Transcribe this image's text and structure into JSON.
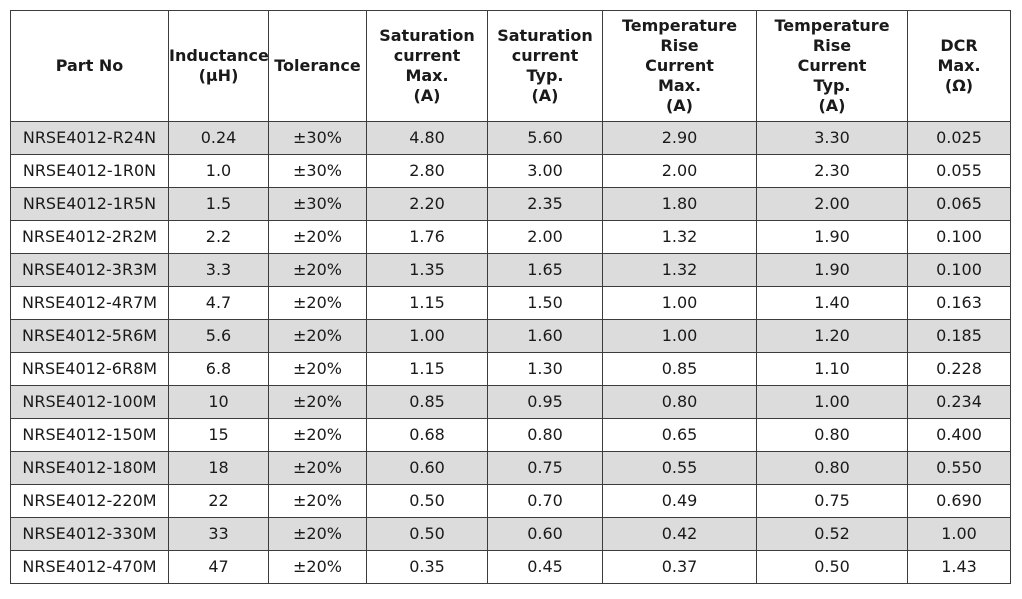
{
  "colors": {
    "shaded_row": "#dcdcdc",
    "border": "#3c3c3c",
    "text": "#1a1a1a"
  },
  "headers": [
    "Part No",
    "Inductance\n(µH)",
    "Tolerance",
    "Saturation\ncurrent\nMax.\n(A)",
    "Saturation\ncurrent\nTyp.\n(A)",
    "Temperature Rise\nCurrent\nMax.\n(A)",
    "Temperature Rise\nCurrent\nTyp.\n(A)",
    "DCR\nMax.\n(Ω)"
  ],
  "rows": [
    [
      "NRSE4012-R24N",
      "0.24",
      "±30%",
      "4.80",
      "5.60",
      "2.90",
      "3.30",
      "0.025"
    ],
    [
      "NRSE4012-1R0N",
      "1.0",
      "±30%",
      "2.80",
      "3.00",
      "2.00",
      "2.30",
      "0.055"
    ],
    [
      "NRSE4012-1R5N",
      "1.5",
      "±30%",
      "2.20",
      "2.35",
      "1.80",
      "2.00",
      "0.065"
    ],
    [
      "NRSE4012-2R2M",
      "2.2",
      "±20%",
      "1.76",
      "2.00",
      "1.32",
      "1.90",
      "0.100"
    ],
    [
      "NRSE4012-3R3M",
      "3.3",
      "±20%",
      "1.35",
      "1.65",
      "1.32",
      "1.90",
      "0.100"
    ],
    [
      "NRSE4012-4R7M",
      "4.7",
      "±20%",
      "1.15",
      "1.50",
      "1.00",
      "1.40",
      "0.163"
    ],
    [
      "NRSE4012-5R6M",
      "5.6",
      "±20%",
      "1.00",
      "1.60",
      "1.00",
      "1.20",
      "0.185"
    ],
    [
      "NRSE4012-6R8M",
      "6.8",
      "±20%",
      "1.15",
      "1.30",
      "0.85",
      "1.10",
      "0.228"
    ],
    [
      "NRSE4012-100M",
      "10",
      "±20%",
      "0.85",
      "0.95",
      "0.80",
      "1.00",
      "0.234"
    ],
    [
      "NRSE4012-150M",
      "15",
      "±20%",
      "0.68",
      "0.80",
      "0.65",
      "0.80",
      "0.400"
    ],
    [
      "NRSE4012-180M",
      "18",
      "±20%",
      "0.60",
      "0.75",
      "0.55",
      "0.80",
      "0.550"
    ],
    [
      "NRSE4012-220M",
      "22",
      "±20%",
      "0.50",
      "0.70",
      "0.49",
      "0.75",
      "0.690"
    ],
    [
      "NRSE4012-330M",
      "33",
      "±20%",
      "0.50",
      "0.60",
      "0.42",
      "0.52",
      "1.00"
    ],
    [
      "NRSE4012-470M",
      "47",
      "±20%",
      "0.35",
      "0.45",
      "0.37",
      "0.50",
      "1.43"
    ]
  ]
}
